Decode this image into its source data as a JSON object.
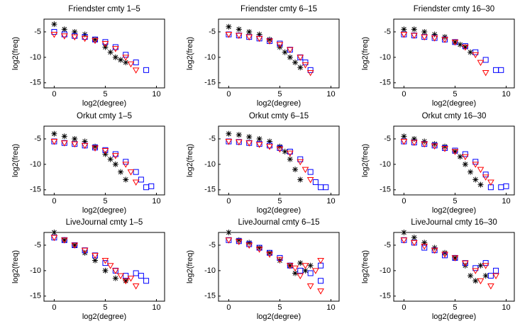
{
  "chart_data": [
    {
      "type": "scatter",
      "title": "Friendster cmty 1–5",
      "xlabel": "log2(degree)",
      "ylabel": "log2(freq)",
      "xlim": [
        -1,
        10.8
      ],
      "ylim": [
        -16,
        -2.5
      ],
      "xticks": [
        0,
        5,
        10
      ],
      "yticks": [
        -5,
        -10,
        -15
      ],
      "series": [
        {
          "color": "#000000",
          "marker": "asterisk",
          "x": [
            0,
            1,
            2,
            3,
            4,
            5,
            5.5,
            6,
            6.5,
            7
          ],
          "values": [
            -3.5,
            -4.5,
            -5,
            -5.5,
            -6.5,
            -8,
            -9,
            -10,
            -10.5,
            -11
          ]
        },
        {
          "color": "#0000ff",
          "marker": "square",
          "x": [
            0,
            1,
            2,
            3,
            4,
            5,
            6,
            7,
            8,
            9
          ],
          "values": [
            -5,
            -5.5,
            -5.8,
            -6,
            -6.5,
            -7,
            -8,
            -9.5,
            -11,
            -12.5
          ]
        },
        {
          "color": "#ff0000",
          "marker": "triangle",
          "x": [
            0,
            1,
            2,
            3,
            4,
            5,
            6,
            7,
            7.5,
            8
          ],
          "values": [
            -5.5,
            -5.8,
            -6,
            -6.3,
            -6.7,
            -7.3,
            -8.3,
            -10,
            -11.3,
            -12.5
          ]
        }
      ]
    },
    {
      "type": "scatter",
      "title": "Friendster cmty 6–15",
      "xlabel": "log2(degree)",
      "ylabel": "log2(freq)",
      "xlim": [
        -1,
        10.8
      ],
      "ylim": [
        -16,
        -2.5
      ],
      "xticks": [
        0,
        5,
        10
      ],
      "yticks": [
        -5,
        -10,
        -15
      ],
      "series": [
        {
          "color": "#000000",
          "marker": "asterisk",
          "x": [
            0,
            1,
            2,
            3,
            4,
            5,
            5.5,
            6,
            6.5,
            7
          ],
          "values": [
            -4,
            -4.5,
            -5,
            -5.5,
            -6.5,
            -8,
            -9,
            -10,
            -11,
            -12
          ]
        },
        {
          "color": "#0000ff",
          "marker": "square",
          "x": [
            0,
            1,
            2,
            3,
            4,
            5,
            6,
            7,
            7.5,
            8
          ],
          "values": [
            -5.5,
            -5.7,
            -6,
            -6.3,
            -6.8,
            -7.3,
            -8.5,
            -10,
            -11,
            -12.5
          ]
        },
        {
          "color": "#ff0000",
          "marker": "triangle",
          "x": [
            0,
            1,
            2,
            3,
            4,
            5,
            6,
            7,
            7.5,
            8
          ],
          "values": [
            -5.5,
            -5.7,
            -6,
            -6.3,
            -6.8,
            -7.5,
            -8.5,
            -10,
            -11.5,
            -13
          ]
        }
      ]
    },
    {
      "type": "scatter",
      "title": "Friendster cmty 16–30",
      "xlabel": "log2(degree)",
      "ylabel": "log2(freq)",
      "xlim": [
        -1,
        10.8
      ],
      "ylim": [
        -16,
        -2.5
      ],
      "xticks": [
        0,
        5,
        10
      ],
      "yticks": [
        -5,
        -10,
        -15
      ],
      "series": [
        {
          "color": "#000000",
          "marker": "asterisk",
          "x": [
            0,
            1,
            2,
            3,
            4,
            5,
            5.5,
            6,
            6.5
          ],
          "values": [
            -4.5,
            -4.5,
            -5,
            -5.5,
            -6,
            -7,
            -7.5,
            -8,
            -9
          ]
        },
        {
          "color": "#0000ff",
          "marker": "square",
          "x": [
            0,
            1,
            2,
            3,
            4,
            5,
            6,
            7,
            8,
            9,
            9.5
          ],
          "values": [
            -5.5,
            -5.7,
            -6,
            -6.2,
            -6.5,
            -7,
            -7.8,
            -9,
            -10.5,
            -12.5,
            -12.5
          ]
        },
        {
          "color": "#ff0000",
          "marker": "triangle",
          "x": [
            0,
            1,
            2,
            3,
            4,
            5,
            6,
            7,
            7.5,
            8
          ],
          "values": [
            -5.5,
            -5.7,
            -6,
            -6.2,
            -6.5,
            -7,
            -8,
            -9.5,
            -11,
            -13
          ]
        }
      ]
    },
    {
      "type": "scatter",
      "title": "Orkut cmty 1–5",
      "xlabel": "log2(degree)",
      "ylabel": "log2(freq)",
      "xlim": [
        -1,
        10.8
      ],
      "ylim": [
        -16,
        -2.5
      ],
      "xticks": [
        0,
        5,
        10
      ],
      "yticks": [
        -5,
        -10,
        -15
      ],
      "series": [
        {
          "color": "#000000",
          "marker": "asterisk",
          "x": [
            0,
            1,
            2,
            3,
            4,
            5,
            5.5,
            6,
            6.5,
            7
          ],
          "values": [
            -4,
            -4.5,
            -5,
            -5.5,
            -6.5,
            -8,
            -9,
            -10,
            -11.5,
            -13
          ]
        },
        {
          "color": "#0000ff",
          "marker": "square",
          "x": [
            0,
            1,
            2,
            3,
            4,
            5,
            6,
            7,
            8,
            8.5,
            9,
            9.5
          ],
          "values": [
            -5.5,
            -5.8,
            -6,
            -6.3,
            -6.7,
            -7.2,
            -8,
            -9.5,
            -11.5,
            -13,
            -14.5,
            -14.3
          ]
        },
        {
          "color": "#ff0000",
          "marker": "triangle",
          "x": [
            0,
            1,
            2,
            3,
            4,
            5,
            6,
            7,
            7.5,
            8
          ],
          "values": [
            -5.5,
            -5.8,
            -6,
            -6.3,
            -6.8,
            -7.3,
            -8.3,
            -10,
            -11.5,
            -13.5
          ]
        }
      ]
    },
    {
      "type": "scatter",
      "title": "Orkut cmty 6–15",
      "xlabel": "log2(degree)",
      "ylabel": "log2(freq)",
      "xlim": [
        -1,
        10.8
      ],
      "ylim": [
        -16,
        -2.5
      ],
      "xticks": [
        0,
        5,
        10
      ],
      "yticks": [
        -5,
        -10,
        -15
      ],
      "series": [
        {
          "color": "#000000",
          "marker": "asterisk",
          "x": [
            0,
            1,
            2,
            3,
            4,
            5,
            5.5,
            6,
            6.5,
            7
          ],
          "values": [
            -4,
            -4.2,
            -4.6,
            -5,
            -5.5,
            -6.5,
            -7.5,
            -9,
            -11,
            -13
          ]
        },
        {
          "color": "#0000ff",
          "marker": "square",
          "x": [
            0,
            1,
            2,
            3,
            4,
            5,
            6,
            7,
            8,
            8.5,
            9,
            9.5
          ],
          "values": [
            -5.5,
            -5.6,
            -5.8,
            -6,
            -6.3,
            -6.8,
            -7.5,
            -9,
            -11.5,
            -13.5,
            -14.5,
            -14.5
          ]
        },
        {
          "color": "#ff0000",
          "marker": "triangle",
          "x": [
            0,
            1,
            2,
            3,
            4,
            5,
            6,
            7,
            7.5,
            8
          ],
          "values": [
            -5.5,
            -5.6,
            -5.8,
            -6.1,
            -6.5,
            -7,
            -7.8,
            -9.5,
            -11,
            -13
          ]
        }
      ]
    },
    {
      "type": "scatter",
      "title": "Orkut cmty 16–30",
      "xlabel": "log2(degree)",
      "ylabel": "log2(freq)",
      "xlim": [
        -1,
        10.8
      ],
      "ylim": [
        -16,
        -2.5
      ],
      "xticks": [
        0,
        5,
        10
      ],
      "yticks": [
        -5,
        -10,
        -15
      ],
      "series": [
        {
          "color": "#000000",
          "marker": "asterisk",
          "x": [
            0,
            1,
            2,
            3,
            4,
            5,
            5.5,
            6,
            6.5,
            7,
            7.5
          ],
          "values": [
            -4.5,
            -5,
            -5.5,
            -6,
            -6.5,
            -7.5,
            -8.5,
            -10,
            -11.5,
            -13,
            -14
          ]
        },
        {
          "color": "#0000ff",
          "marker": "square",
          "x": [
            0,
            1,
            2,
            3,
            4,
            5,
            6,
            7,
            8,
            8.5,
            9.5,
            10
          ],
          "values": [
            -5.5,
            -5.7,
            -6,
            -6.3,
            -6.8,
            -7.3,
            -8,
            -9.5,
            -12,
            -14.5,
            -14.5,
            -14.3
          ]
        },
        {
          "color": "#ff0000",
          "marker": "triangle",
          "x": [
            0,
            1,
            2,
            3,
            4,
            5,
            6,
            7,
            7.5,
            8,
            8.5
          ],
          "values": [
            -5.5,
            -5.7,
            -6,
            -6.4,
            -6.9,
            -7.5,
            -8.5,
            -10,
            -11,
            -12.5,
            -13.5
          ]
        }
      ]
    },
    {
      "type": "scatter",
      "title": "LiveJournal cmty 1–5",
      "xlabel": "log2(degree)",
      "ylabel": "log2(freq)",
      "xlim": [
        -1,
        10.8
      ],
      "ylim": [
        -16,
        -2.5
      ],
      "xticks": [
        0,
        5,
        10
      ],
      "yticks": [
        -5,
        -10,
        -15
      ],
      "series": [
        {
          "color": "#000000",
          "marker": "asterisk",
          "x": [
            0,
            1,
            2,
            3,
            4,
            5,
            6,
            7
          ],
          "values": [
            -2.5,
            -4,
            -5,
            -6.5,
            -8,
            -10,
            -11.5,
            -12
          ]
        },
        {
          "color": "#0000ff",
          "marker": "square",
          "x": [
            0,
            1,
            2,
            3,
            4,
            5,
            6,
            7,
            8,
            8.5,
            9
          ],
          "values": [
            -3.5,
            -4,
            -5,
            -6,
            -7,
            -8.5,
            -10,
            -11,
            -10.5,
            -11,
            -12
          ]
        },
        {
          "color": "#ff0000",
          "marker": "triangle",
          "x": [
            0,
            1,
            2,
            3,
            4,
            5,
            5.5,
            6,
            6.5,
            7,
            7.5,
            8
          ],
          "values": [
            -3.5,
            -4,
            -5,
            -6,
            -7,
            -8,
            -9,
            -10,
            -11,
            -12,
            -11.5,
            -13
          ]
        }
      ]
    },
    {
      "type": "scatter",
      "title": "LiveJournal cmty 6–15",
      "xlabel": "log2(degree)",
      "ylabel": "log2(freq)",
      "xlim": [
        -1,
        10.8
      ],
      "ylim": [
        -16,
        -2.5
      ],
      "xticks": [
        0,
        5,
        10
      ],
      "yticks": [
        -5,
        -10,
        -15
      ],
      "series": [
        {
          "color": "#000000",
          "marker": "asterisk",
          "x": [
            0,
            1,
            2,
            3,
            4,
            5,
            6,
            6.5,
            7,
            7.5,
            8
          ],
          "values": [
            -2.5,
            -4,
            -4.5,
            -5.5,
            -6.5,
            -8,
            -9,
            -10.5,
            -8.5,
            -10,
            -9
          ]
        },
        {
          "color": "#0000ff",
          "marker": "square",
          "x": [
            0,
            1,
            2,
            3,
            4,
            5,
            6,
            7,
            8,
            9,
            9
          ],
          "values": [
            -4,
            -4.2,
            -4.8,
            -5.5,
            -6.5,
            -7.5,
            -9,
            -10,
            -10.5,
            -9,
            -12
          ]
        },
        {
          "color": "#ff0000",
          "marker": "triangle",
          "x": [
            0,
            1,
            2,
            3,
            4,
            5,
            6,
            6.5,
            7,
            7.5,
            8,
            8.5,
            9,
            9
          ],
          "values": [
            -4,
            -4.3,
            -5,
            -5.8,
            -6.8,
            -7.8,
            -9,
            -9.5,
            -11,
            -9,
            -13,
            -10,
            -8,
            -14
          ]
        }
      ]
    },
    {
      "type": "scatter",
      "title": "LiveJournal cmty 16–30",
      "xlabel": "log2(degree)",
      "ylabel": "log2(freq)",
      "xlim": [
        -1,
        10.8
      ],
      "ylim": [
        -16,
        -2.5
      ],
      "xticks": [
        0,
        5,
        10
      ],
      "yticks": [
        -5,
        -10,
        -15
      ],
      "series": [
        {
          "color": "#000000",
          "marker": "asterisk",
          "x": [
            0,
            1,
            2,
            3,
            4,
            5,
            6,
            6.5,
            7,
            7.5,
            8
          ],
          "values": [
            -2.5,
            -3.5,
            -4.5,
            -5.5,
            -6.5,
            -7.5,
            -9,
            -11,
            -12,
            -9,
            -11
          ]
        },
        {
          "color": "#0000ff",
          "marker": "square",
          "x": [
            0,
            1,
            2,
            3,
            4,
            5,
            6,
            7,
            8,
            8.5,
            9
          ],
          "values": [
            -4,
            -4.5,
            -5.5,
            -6,
            -7,
            -7.5,
            -8.5,
            -9.5,
            -8.5,
            -11,
            -10
          ]
        },
        {
          "color": "#ff0000",
          "marker": "triangle",
          "x": [
            0,
            1,
            2,
            3,
            4,
            5,
            6,
            7,
            7.5,
            8,
            8.5,
            9
          ],
          "values": [
            -4,
            -4.5,
            -5.2,
            -6,
            -6.8,
            -7.5,
            -8.5,
            -10,
            -12,
            -9,
            -13,
            -11
          ]
        }
      ]
    }
  ]
}
